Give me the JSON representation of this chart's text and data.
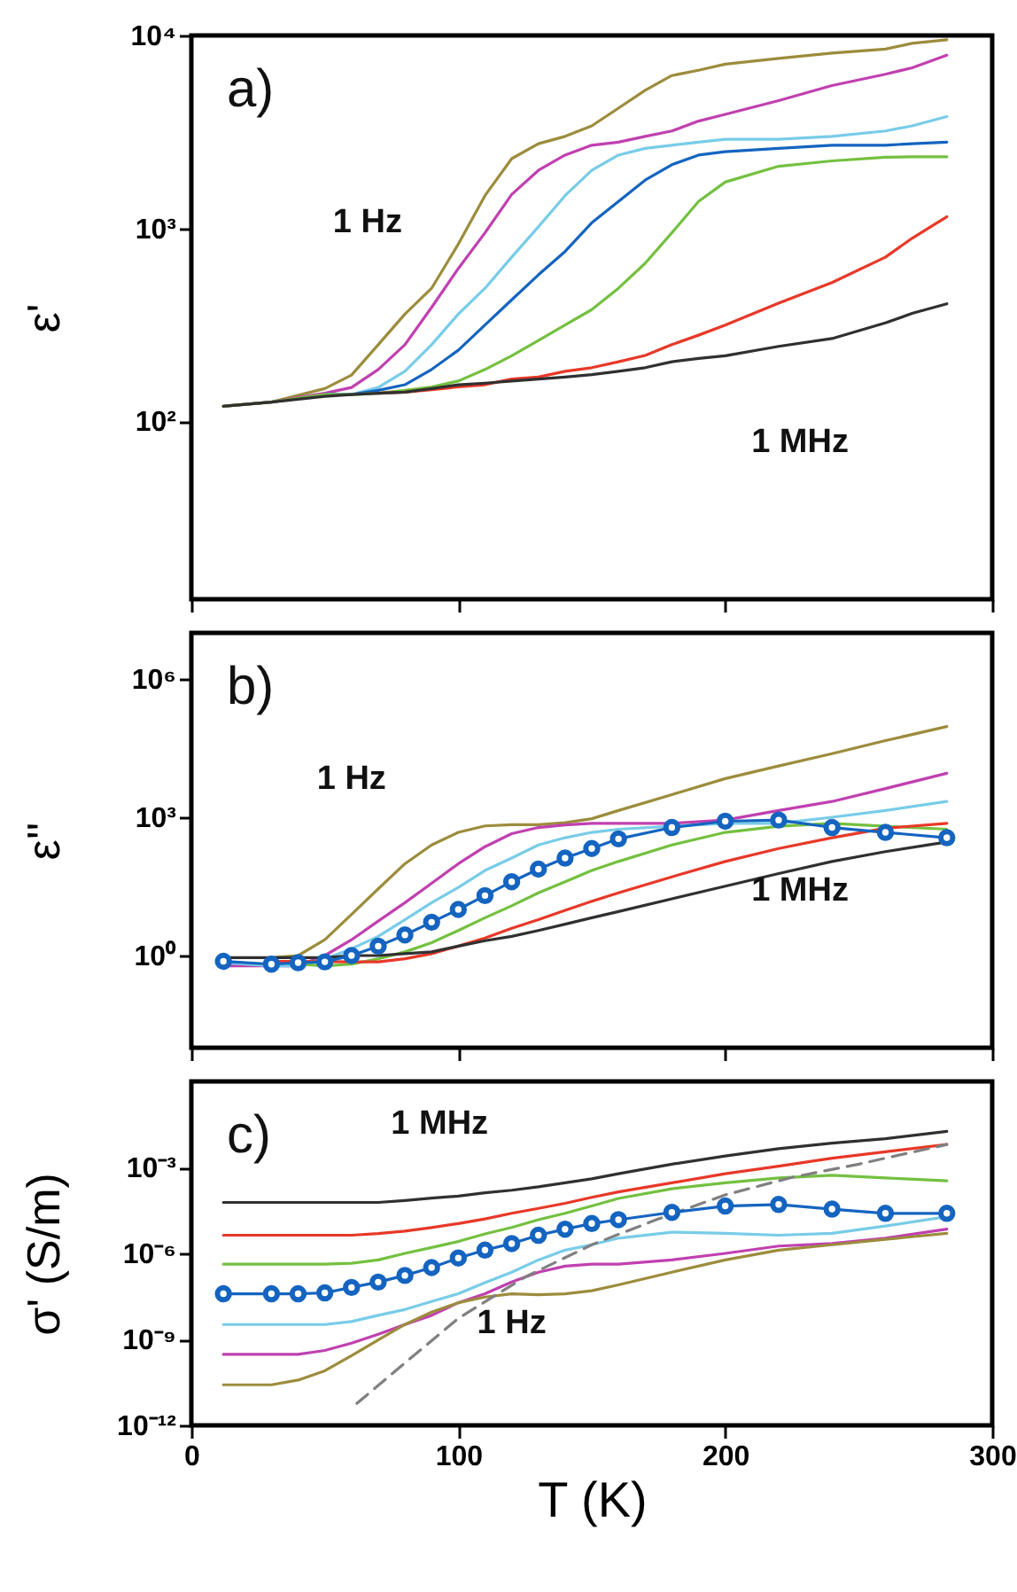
{
  "chart_data": [
    {
      "type": "line",
      "title": "a)",
      "ylabel": "ε'",
      "log": "y",
      "xlim": [
        0,
        300
      ],
      "xticks": [
        0,
        100,
        200,
        300
      ],
      "ylim": [
        12,
        10000
      ],
      "yticks": [
        {
          "value": 100,
          "label": "10²"
        },
        {
          "value": 1000,
          "label": "10³"
        },
        {
          "value": 10000,
          "label": "10⁴"
        }
      ],
      "tick_labels": "y",
      "annotations": [
        "1 Hz",
        "1 MHz"
      ],
      "x": [
        12,
        30,
        50,
        60,
        70,
        80,
        90,
        100,
        110,
        120,
        130,
        140,
        150,
        160,
        170,
        180,
        190,
        200,
        220,
        240,
        260,
        270,
        283
      ],
      "series": [
        {
          "color": "#9c8c3c",
          "values": [
            120,
            126,
            148,
            174,
            250,
            360,
            490,
            830,
            1480,
            2300,
            2750,
            3000,
            3400,
            4200,
            5200,
            6200,
            6600,
            7100,
            7600,
            8100,
            8500,
            9100,
            9500
          ]
        },
        {
          "color": "#c040b0",
          "values": [
            120,
            126,
            140,
            150,
            186,
            250,
            390,
            620,
            950,
            1500,
            2000,
            2400,
            2700,
            2800,
            3000,
            3200,
            3600,
            3900,
            4600,
            5500,
            6300,
            6800,
            7900
          ]
        },
        {
          "color": "#78cce8",
          "values": [
            null,
            null,
            138,
            138,
            150,
            182,
            250,
            360,
            490,
            710,
            1020,
            1480,
            2000,
            2400,
            2600,
            2700,
            2800,
            2900,
            2900,
            3000,
            3200,
            3400,
            3800
          ]
        },
        {
          "color": "#1464c0",
          "values": [
            null,
            null,
            138,
            138,
            145,
            155,
            186,
            234,
            316,
            427,
            575,
            760,
            1070,
            1380,
            1780,
            2140,
            2400,
            2500,
            2600,
            2700,
            2700,
            2750,
            2800
          ]
        },
        {
          "color": "#74c040",
          "values": [
            120,
            126,
            138,
            138,
            140,
            145,
            151,
            162,
            186,
            219,
            263,
            316,
            380,
            490,
            660,
            950,
            1380,
            1740,
            2100,
            2240,
            2340,
            2350,
            2350
          ]
        },
        {
          "color": "#e83828",
          "values": [
            null,
            null,
            null,
            null,
            140,
            142,
            146,
            151,
            155,
            166,
            170,
            182,
            190,
            204,
            220,
            250,
            280,
            316,
            410,
            525,
            710,
            890,
            1150
          ]
        },
        {
          "color": "#303030",
          "values": [
            120,
            126,
            135,
            138,
            140,
            142,
            148,
            155,
            158,
            162,
            166,
            170,
            175,
            182,
            190,
            204,
            212,
            219,
            245,
            269,
            324,
            363,
            407
          ]
        }
      ]
    },
    {
      "type": "line",
      "title": "b)",
      "ylabel": "ε''",
      "log": "y",
      "xlim": [
        0,
        300
      ],
      "xticks": [
        0,
        100,
        200,
        300
      ],
      "ylim": [
        0.01,
        10000000
      ],
      "yticks": [
        {
          "value": 1,
          "label": "10⁰"
        },
        {
          "value": 1000,
          "label": "10³"
        },
        {
          "value": 1000000,
          "label": "10⁶"
        }
      ],
      "tick_labels": "y",
      "annotations": [
        "1 Hz",
        "1 MHz"
      ],
      "x": [
        12,
        30,
        40,
        50,
        60,
        70,
        80,
        90,
        100,
        110,
        120,
        130,
        140,
        150,
        160,
        180,
        200,
        220,
        240,
        260,
        283
      ],
      "series": [
        {
          "color": "#9c8c3c",
          "values": [
            null,
            0.9,
            1,
            2.2,
            7.8,
            28,
            98,
            250,
            470,
            650,
            690,
            690,
            760,
            930,
            1400,
            3100,
            6900,
            13000,
            24000,
            46000,
            93000
          ]
        },
        {
          "color": "#c040b0",
          "values": [
            0.6,
            0.6,
            0.6,
            1,
            2.2,
            5.6,
            14,
            37,
            98,
            230,
            440,
            600,
            680,
            740,
            740,
            740,
            870,
            1400,
            2200,
            4200,
            9000
          ]
        },
        {
          "color": "#78cce8",
          "values": [
            0.7,
            0.6,
            0.6,
            0.85,
            1.4,
            2.6,
            6,
            14,
            30,
            70,
            130,
            250,
            360,
            470,
            550,
            640,
            740,
            740,
            1000,
            1400,
            2200
          ]
        },
        {
          "color": "#74c040",
          "values": [
            null,
            null,
            0.65,
            0.6,
            0.65,
            0.85,
            1.2,
            1.9,
            3.5,
            6.6,
            12,
            23,
            40,
            70,
            110,
            250,
            470,
            640,
            740,
            640,
            550
          ]
        },
        {
          "color": "#e83828",
          "values": [
            null,
            0.75,
            0.75,
            null,
            0.73,
            0.73,
            0.85,
            1.1,
            1.6,
            2.4,
            3.9,
            6,
            9.6,
            15,
            23,
            51,
            110,
            210,
            360,
            580,
            740
          ]
        },
        {
          "color": "#303030",
          "values": [
            0.9,
            0.9,
            0.9,
            0.9,
            1,
            1,
            1.1,
            1.2,
            1.6,
            2.1,
            2.6,
            3.5,
            4.8,
            6.6,
            9,
            17,
            32,
            60,
            110,
            180,
            290
          ]
        },
        {
          "color": "#1464c0",
          "marker": "circle",
          "values": [
            0.75,
            0.65,
            0.7,
            0.73,
            1,
            1.6,
            2.8,
            5.3,
            10,
            20,
            40,
            75,
            130,
            210,
            340,
            600,
            820,
            870,
            600,
            470,
            360
          ]
        }
      ]
    },
    {
      "type": "line",
      "title": "c)",
      "xlabel": "T (K)",
      "ylabel": "σ' (S/m)",
      "log": "y",
      "xlim": [
        0,
        300
      ],
      "xticks": [
        0,
        100,
        200,
        300
      ],
      "ylim": [
        1e-12,
        1
      ],
      "yticks": [
        {
          "value": 1e-12,
          "label": "10⁻¹²"
        },
        {
          "value": 1e-09,
          "label": "10⁻⁹"
        },
        {
          "value": 1e-06,
          "label": "10⁻⁶"
        },
        {
          "value": 0.001,
          "label": "10⁻³"
        }
      ],
      "annotations": [
        "1 MHz",
        "1 Hz"
      ],
      "x": [
        12,
        30,
        40,
        50,
        60,
        70,
        80,
        90,
        100,
        110,
        120,
        130,
        140,
        150,
        160,
        180,
        200,
        220,
        240,
        260,
        283
      ],
      "series": [
        {
          "color": "#303030",
          "values": [
            6e-05,
            6e-05,
            6e-05,
            6e-05,
            6e-05,
            6e-05,
            7e-05,
            8.5e-05,
            0.0001,
            0.00013,
            0.00016,
            0.00021,
            0.00029,
            0.0004,
            0.0006,
            0.0013,
            0.0025,
            0.0045,
            0.007,
            0.01,
            0.018
          ]
        },
        {
          "color": "#e83828",
          "values": [
            4.3e-06,
            4.3e-06,
            4.3e-06,
            4.3e-06,
            4.3e-06,
            4.9e-06,
            6e-06,
            8e-06,
            1.1e-05,
            1.6e-05,
            2.5e-05,
            3.7e-05,
            5.6e-05,
            9e-05,
            0.00014,
            0.00029,
            0.0006,
            0.0011,
            0.0021,
            0.0035,
            0.0063
          ]
        },
        {
          "color": "#74c040",
          "values": [
            4.2e-07,
            4.2e-07,
            4.2e-07,
            4.2e-07,
            4.5e-07,
            5.9e-07,
            1e-06,
            1.6e-06,
            2.6e-06,
            4.8e-06,
            8e-06,
            1.5e-05,
            2.5e-05,
            4.5e-05,
            8.3e-05,
            0.00018,
            0.00029,
            0.00043,
            0.00053,
            0.00043,
            0.00034
          ]
        },
        {
          "color": "#78cce8",
          "values": [
            3.3e-09,
            3.3e-09,
            3.3e-09,
            3.3e-09,
            4.2e-09,
            6.9e-09,
            1.1e-08,
            2.1e-08,
            3.9e-08,
            9.5e-08,
            2.2e-07,
            5.9e-07,
            1.3e-06,
            2e-06,
            3.4e-06,
            5.5e-06,
            5e-06,
            4.3e-06,
            5e-06,
            9e-06,
            1.9e-05
          ]
        },
        {
          "color": "#c040b0",
          "values": [
            3e-10,
            3e-10,
            3e-10,
            4.1e-10,
            7.4e-10,
            1.5e-09,
            3.3e-09,
            6.9e-09,
            1.9e-08,
            3.9e-08,
            1e-07,
            2.2e-07,
            3.6e-07,
            4.2e-07,
            4.2e-07,
            5.9e-07,
            1e-06,
            1.8e-06,
            2.2e-06,
            3.4e-06,
            7e-06
          ]
        },
        {
          "color": "#9c8c3c",
          "values": [
            2.6e-11,
            2.6e-11,
            3.8e-11,
            8e-11,
            2.7e-10,
            9.5e-10,
            3.3e-09,
            8.9e-09,
            1.9e-08,
            3e-08,
            3.9e-08,
            3.6e-08,
            3.9e-08,
            5e-08,
            8e-08,
            2.2e-07,
            5.9e-07,
            1.3e-06,
            2e-06,
            3.1e-06,
            5e-06
          ]
        },
        {
          "type": "line",
          "color": "#808080",
          "line_style": "dashed",
          "x": [
            62,
            80,
            100,
            125,
            150,
            175,
            200,
            225,
            250,
            283
          ],
          "values": [
            5.8e-12,
            1.5e-10,
            5.4e-09,
            1.5e-07,
            2e-06,
            1.6e-05,
            0.00011,
            0.00045,
            0.0013,
            0.0063
          ]
        },
        {
          "color": "#1464c0",
          "marker": "circle",
          "values": [
            3.9e-08,
            3.9e-08,
            3.9e-08,
            4.2e-08,
            6.5e-08,
            1e-07,
            1.7e-07,
            3.2e-07,
            6.9e-07,
            1.3e-06,
            2.2e-06,
            4.3e-06,
            7e-06,
            1.1e-05,
            1.5e-05,
            2.7e-05,
            4.5e-05,
            5.1e-05,
            3.5e-05,
            2.5e-05,
            2.5e-05
          ]
        }
      ]
    }
  ]
}
